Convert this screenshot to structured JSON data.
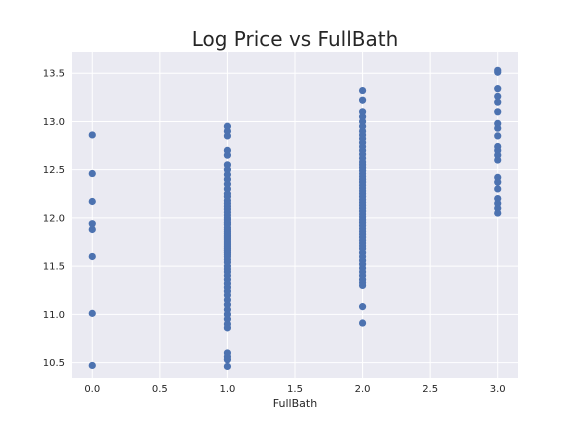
{
  "chart_data": {
    "type": "scatter",
    "title": "Log Price vs FullBath",
    "xlabel": "FullBath",
    "ylabel": "",
    "xlim": [
      -0.15,
      3.15
    ],
    "ylim": [
      10.34,
      13.72
    ],
    "xticks": [
      0.0,
      0.5,
      1.0,
      1.5,
      2.0,
      2.5,
      3.0
    ],
    "xtick_labels": [
      "0.0",
      "0.5",
      "1.0",
      "1.5",
      "2.0",
      "2.5",
      "3.0"
    ],
    "yticks": [
      10.5,
      11.0,
      11.5,
      12.0,
      12.5,
      13.0,
      13.5
    ],
    "ytick_labels": [
      "10.5",
      "11.0",
      "11.5",
      "12.0",
      "12.5",
      "13.0",
      "13.5"
    ],
    "grid": true,
    "colors": {
      "marker": "#4c72b0",
      "background": "#eaeaf2",
      "grid": "#ffffff"
    },
    "series": [
      {
        "x": 0,
        "y": [
          12.86,
          12.46,
          12.17,
          11.94,
          11.88,
          11.6,
          11.01,
          10.47
        ]
      },
      {
        "x": 1,
        "y": [
          12.95,
          12.9,
          12.85,
          12.7,
          12.65,
          12.55,
          12.5,
          12.45,
          12.4,
          12.35,
          12.3,
          12.25,
          12.22,
          12.18,
          12.15,
          12.12,
          12.09,
          12.06,
          12.03,
          12.0,
          11.98,
          11.95,
          11.93,
          11.9,
          11.88,
          11.86,
          11.84,
          11.82,
          11.8,
          11.78,
          11.76,
          11.74,
          11.72,
          11.7,
          11.68,
          11.66,
          11.64,
          11.62,
          11.6,
          11.57,
          11.54,
          11.5,
          11.47,
          11.44,
          11.4,
          11.36,
          11.32,
          11.28,
          11.24,
          11.2,
          11.15,
          11.1,
          11.05,
          11.0,
          10.95,
          10.9,
          10.86,
          10.6,
          10.56,
          10.53,
          10.46
        ]
      },
      {
        "x": 2,
        "y": [
          13.32,
          13.22,
          13.1,
          13.05,
          13.0,
          12.95,
          12.9,
          12.86,
          12.82,
          12.78,
          12.74,
          12.7,
          12.66,
          12.62,
          12.58,
          12.55,
          12.52,
          12.49,
          12.46,
          12.43,
          12.4,
          12.37,
          12.34,
          12.31,
          12.28,
          12.25,
          12.22,
          12.19,
          12.16,
          12.13,
          12.1,
          12.07,
          12.04,
          12.01,
          11.98,
          11.95,
          11.92,
          11.89,
          11.86,
          11.83,
          11.8,
          11.77,
          11.74,
          11.71,
          11.68,
          11.64,
          11.6,
          11.56,
          11.52,
          11.48,
          11.44,
          11.4,
          11.36,
          11.33,
          11.3,
          11.08,
          10.91
        ]
      },
      {
        "x": 3,
        "y": [
          13.53,
          13.51,
          13.34,
          13.26,
          13.2,
          13.1,
          12.98,
          12.93,
          12.85,
          12.74,
          12.7,
          12.65,
          12.6,
          12.42,
          12.37,
          12.3,
          12.2,
          12.15,
          12.1,
          12.05
        ]
      }
    ]
  }
}
